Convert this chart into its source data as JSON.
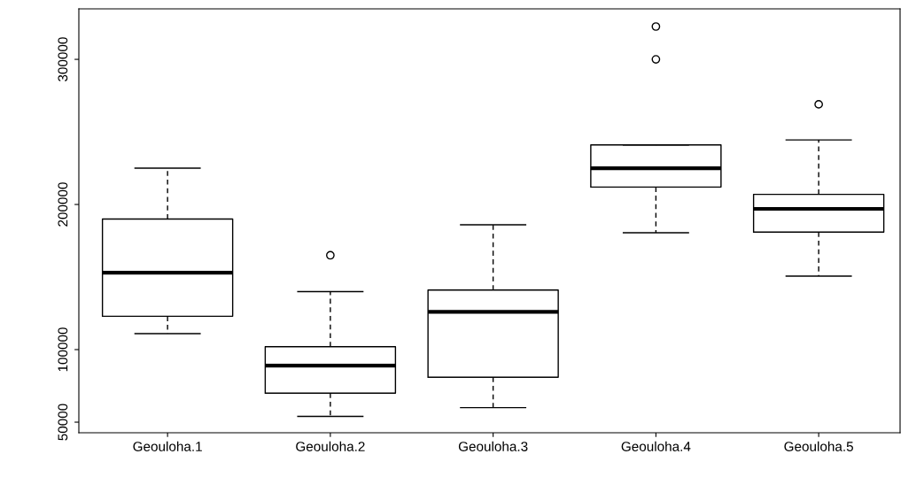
{
  "chart_data": {
    "type": "box",
    "categories": [
      "Geouloha.1",
      "Geouloha.2",
      "Geouloha.3",
      "Geouloha.4",
      "Geouloha.5"
    ],
    "boxes": [
      {
        "low": 111000,
        "q1": 123000,
        "median": 153000,
        "q3": 190000,
        "high": 225000
      },
      {
        "low": 54000,
        "q1": 70000,
        "median": 89000,
        "q3": 102000,
        "high": 140000,
        "outliers": [
          165000
        ]
      },
      {
        "low": 60000,
        "q1": 81000,
        "median": 126000,
        "q3": 141000,
        "high": 186000
      },
      {
        "low": 180500,
        "q1": 212000,
        "median": 225000,
        "q3": 241000,
        "high": 241000,
        "outliers": [
          300000,
          322600
        ]
      },
      {
        "low": 150600,
        "q1": 181000,
        "median": 197000,
        "q3": 207000,
        "high": 244500,
        "outliers": [
          269000
        ]
      }
    ],
    "ylim": [
      42700,
      334800
    ],
    "yticks": [
      50000,
      100000,
      200000,
      300000
    ],
    "grid": false
  }
}
